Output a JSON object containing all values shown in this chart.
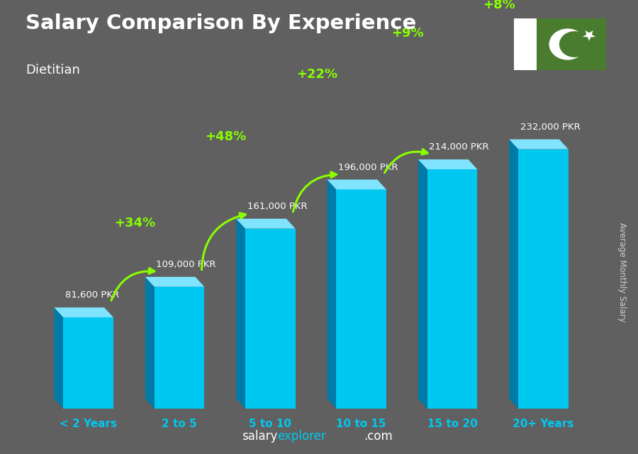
{
  "title": "Salary Comparison By Experience",
  "subtitle": "Dietitian",
  "ylabel": "Average Monthly Salary",
  "categories": [
    "< 2 Years",
    "2 to 5",
    "5 to 10",
    "10 to 15",
    "15 to 20",
    "20+ Years"
  ],
  "values": [
    81600,
    109000,
    161000,
    196000,
    214000,
    232000
  ],
  "bar_color_front": "#00C8F0",
  "bar_color_left": "#007BA8",
  "bar_color_top": "#80E4FF",
  "bg_color": "#606060",
  "title_color": "#FFFFFF",
  "subtitle_color": "#FFFFFF",
  "pct_color": "#88FF00",
  "salary_color": "#FFFFFF",
  "tick_color": "#00C8F0",
  "bottom_text_salary": "salary",
  "bottom_text_explorer": "explorer",
  "bottom_text_com": ".com",
  "pct_labels": [
    "+34%",
    "+48%",
    "+22%",
    "+9%",
    "+8%"
  ],
  "salary_labels": [
    "81,600 PKR",
    "109,000 PKR",
    "161,000 PKR",
    "196,000 PKR",
    "214,000 PKR",
    "232,000 PKR"
  ],
  "flag_white": "#FFFFFF",
  "flag_green": "#4A7C2F",
  "figsize": [
    9.0,
    6.41
  ],
  "dpi": 100
}
